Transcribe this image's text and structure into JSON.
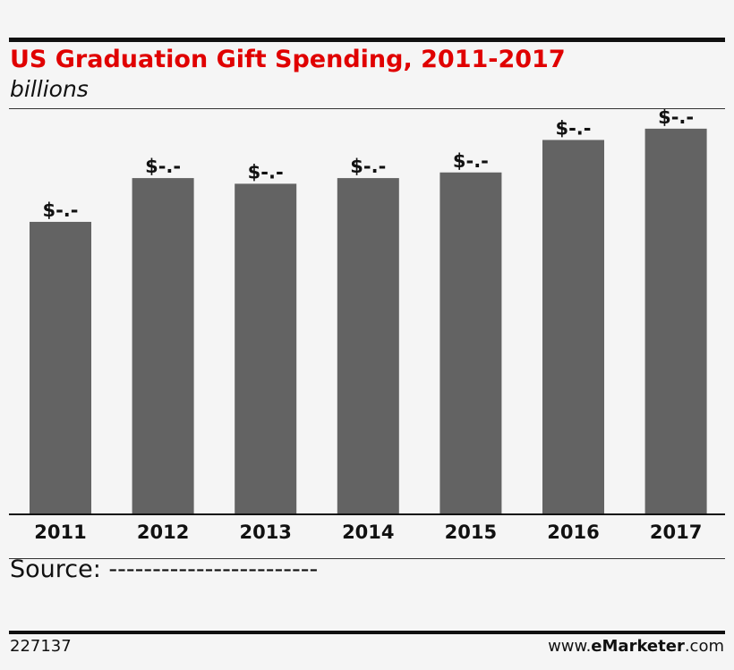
{
  "header": {
    "title": "US Graduation Gift Spending, 2011-2017",
    "subtitle": "billions"
  },
  "footer": {
    "source": "Source: ------------------------",
    "chart_id": "227137",
    "brand_prefix": "www.",
    "brand_name": "eMarketer",
    "brand_suffix": ".com"
  },
  "colors": {
    "bar": "#636363",
    "title": "#e00000"
  },
  "chart_data": {
    "type": "bar",
    "title": "US Graduation Gift Spending, 2011-2017",
    "subtitle": "billions",
    "categories": [
      "2011",
      "2012",
      "2013",
      "2014",
      "2015",
      "2016",
      "2017"
    ],
    "values": [
      4.13,
      4.75,
      4.67,
      4.75,
      4.83,
      5.29,
      5.45
    ],
    "data_labels": [
      "$-.-",
      "$-.-",
      "$-.-",
      "$-.-",
      "$-.-",
      "$-.-",
      "$-.-"
    ],
    "xlabel": "",
    "ylabel": "",
    "ylim": [
      0,
      5.6
    ],
    "grid": false,
    "legend": "none"
  }
}
